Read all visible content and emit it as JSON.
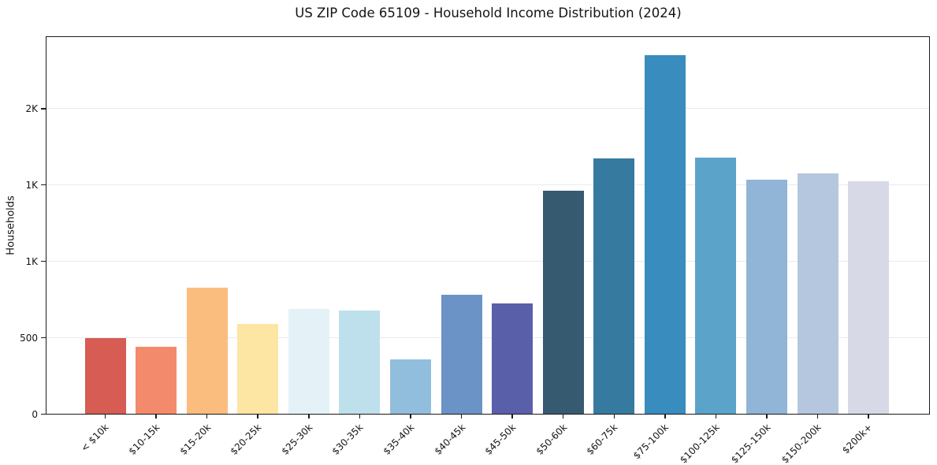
{
  "title": "US ZIP Code 65109 - Household Income Distribution (2024)",
  "y_axis_title": "Households",
  "chart_data": {
    "type": "bar",
    "title": "US ZIP Code 65109 - Household Income Distribution (2024)",
    "xlabel": "",
    "ylabel": "Households",
    "categories": [
      "< $10k",
      "$10-15k",
      "$15-20k",
      "$20-25k",
      "$25-30k",
      "$30-35k",
      "$35-40k",
      "$40-45k",
      "$45-50k",
      "$50-60k",
      "$60-75k",
      "$75-100k",
      "$100-125k",
      "$125-150k",
      "$150-200k",
      "$200k+"
    ],
    "values": [
      496,
      437,
      824,
      586,
      684,
      676,
      355,
      781,
      723,
      1461,
      1671,
      2350,
      1677,
      1530,
      1576,
      1521
    ],
    "bar_colors": [
      "#d65c54",
      "#f38a6b",
      "#fbbd7e",
      "#fde5a4",
      "#e4f2f8",
      "#bee0ec",
      "#92bedd",
      "#6b93c5",
      "#5a5fa9",
      "#365a70",
      "#377aa0",
      "#388cbe",
      "#5ba3c9",
      "#90b5d6",
      "#b5c7de",
      "#d8d9e7"
    ],
    "y_ticks": [
      {
        "value": 0,
        "label": "0"
      },
      {
        "value": 500,
        "label": "500"
      },
      {
        "value": 1000,
        "label": "1K"
      },
      {
        "value": 1500,
        "label": "1K"
      },
      {
        "value": 2000,
        "label": "2K"
      }
    ],
    "ylim": [
      0,
      2466
    ],
    "grid": "horizontal",
    "grid_color": "#eaeaee",
    "axis_color": "#1a1a1a",
    "text_color": "#141414",
    "legend": "none",
    "x_label_rotation_deg": 45
  }
}
